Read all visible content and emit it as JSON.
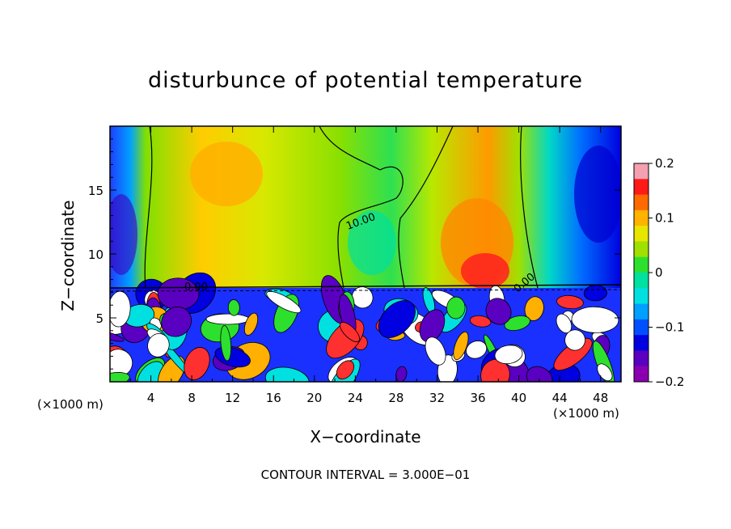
{
  "chart_data": {
    "type": "heatmap",
    "title": "disturbunce of potential temperature",
    "xlabel": "X−coordinate",
    "ylabel": "Z−coordinate",
    "x_unit_label_left": "(×1000 m)",
    "x_unit_label_right": "(×1000 m)",
    "x_ticks": [
      "4",
      "8",
      "12",
      "16",
      "20",
      "24",
      "28",
      "32",
      "36",
      "40",
      "44",
      "48"
    ],
    "y_ticks": [
      "5",
      "10",
      "15"
    ],
    "xlim": [
      0,
      50
    ],
    "ylim": [
      0,
      20
    ],
    "colorbar": {
      "ticks": [
        "0.2",
        "0.1",
        "0",
        "−0.1",
        "−0.2"
      ],
      "range": [
        -0.2,
        0.2
      ],
      "colors": [
        "#f5a0b0",
        "#ff1a1a",
        "#ff6a00",
        "#ffb300",
        "#e6e600",
        "#a0e000",
        "#2ee02e",
        "#00e0a0",
        "#00e0e0",
        "#00a0ff",
        "#0050ff",
        "#0000e0",
        "#5a00c0",
        "#8a00b0"
      ]
    },
    "contour_labels": [
      "10.00",
      "0.00",
      "0.00"
    ],
    "contour_interval_text": "CONTOUR INTERVAL = 3.000E−01",
    "regions": [
      {
        "x0": 0,
        "x1": 3,
        "z0": 7.5,
        "z1": 20,
        "value": -0.12
      },
      {
        "x0": 3,
        "x1": 8,
        "z0": 7.5,
        "z1": 20,
        "value": 0.05
      },
      {
        "x0": 8,
        "x1": 16,
        "z0": 7.5,
        "z1": 20,
        "value": 0.09
      },
      {
        "x0": 16,
        "x1": 24,
        "z0": 7.5,
        "z1": 20,
        "value": 0.04
      },
      {
        "x0": 24,
        "x1": 30,
        "z0": 7.5,
        "z1": 20,
        "value": 0.0
      },
      {
        "x0": 30,
        "x1": 40,
        "z0": 7.5,
        "z1": 20,
        "value": 0.07
      },
      {
        "x0": 40,
        "x1": 44,
        "z0": 7.5,
        "z1": 20,
        "value": -0.05
      },
      {
        "x0": 44,
        "x1": 50,
        "z0": 7.5,
        "z1": 20,
        "value": -0.14
      },
      {
        "x0": 0,
        "x1": 50,
        "z0": 0,
        "z1": 7.5,
        "value": -0.15
      }
    ]
  }
}
